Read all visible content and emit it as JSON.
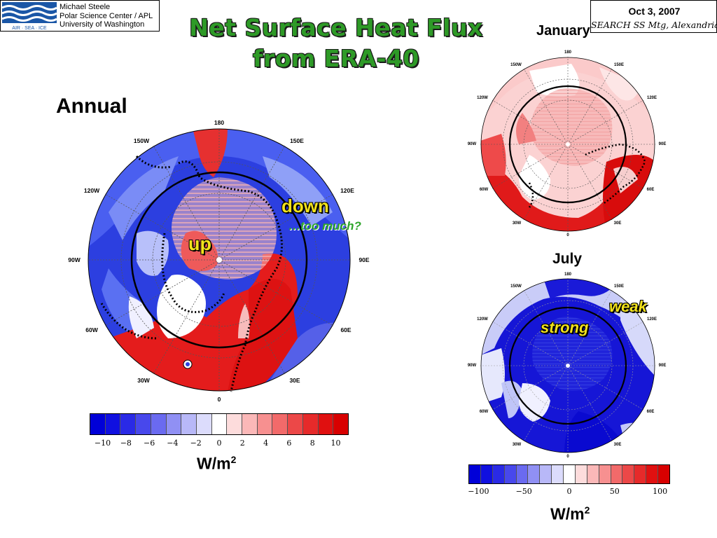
{
  "header": {
    "credit": [
      "Michael Steele",
      "Polar Science Center / APL",
      "University of Washington"
    ],
    "logo_text": "AIR · SEA · ICE",
    "date": "Oct 3, 2007",
    "meeting": "SEARCH SS Mtg, Alexandria, VA"
  },
  "title": {
    "line1": "Net Surface Heat Flux",
    "line2": "from ERA-40"
  },
  "panels": {
    "annual": {
      "label": "Annual",
      "longitudes": {
        "top": "180",
        "tr": "150E",
        "rt": "120E",
        "right": "90E",
        "rb": "60E",
        "br": "30E",
        "bottom": "0",
        "bl": "30W",
        "lb": "60W",
        "left": "90W",
        "lt": "120W",
        "tl": "150W"
      },
      "annotations": {
        "up": "up",
        "down": "down",
        "too_much": "…too much?"
      },
      "colorbar_ticks": [
        "−10",
        "−8",
        "−6",
        "−4",
        "−2",
        "0",
        "2",
        "4",
        "6",
        "8",
        "10"
      ],
      "unit": "W/m",
      "unit_exp": "2"
    },
    "january": {
      "label": "January",
      "longitudes": {
        "top": "180",
        "tr": "150E",
        "rt": "120E",
        "right": "90E",
        "rb": "60E",
        "br": "30E",
        "bottom": "0",
        "bl": "30W",
        "lb": "60W",
        "left": "90W",
        "lt": "120W",
        "tl": "150W"
      }
    },
    "july": {
      "label": "July",
      "longitudes": {
        "top": "180",
        "tr": "150E",
        "rt": "120E",
        "right": "90E",
        "rb": "60E",
        "br": "30E",
        "bottom": "0",
        "bl": "30W",
        "lb": "60W",
        "left": "90W",
        "lt": "120W",
        "tl": "150W"
      },
      "annotations": {
        "strong": "strong",
        "weak": "weak"
      },
      "colorbar_ticks": [
        "−100",
        "−50",
        "0",
        "50",
        "100"
      ],
      "unit": "W/m",
      "unit_exp": "2"
    }
  },
  "colors": {
    "title_green": "#2e9a27",
    "annotation_yellow": "#f2e21c",
    "colorbar": [
      "#0000d8",
      "#1010e0",
      "#2a2ae6",
      "#4848ec",
      "#6a6af0",
      "#9090f4",
      "#b8b8f8",
      "#dcdcfc",
      "#ffffff",
      "#fddcdc",
      "#fbb8b8",
      "#f79090",
      "#f26a6a",
      "#ec4848",
      "#e62a2a",
      "#e01010",
      "#d80000"
    ]
  }
}
